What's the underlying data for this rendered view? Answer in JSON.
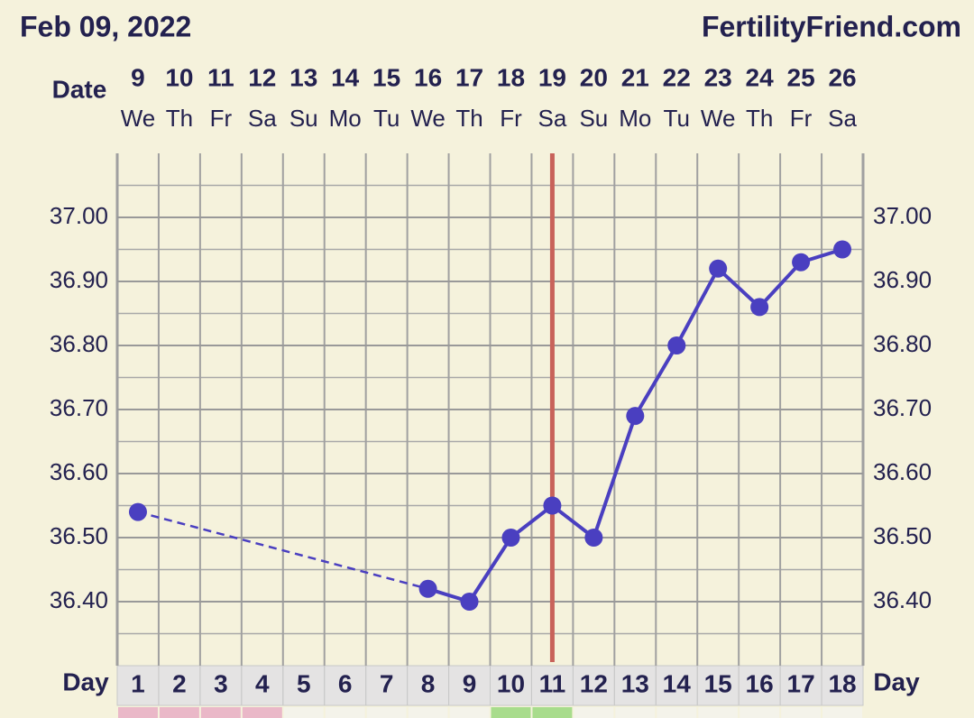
{
  "chart_data": {
    "type": "line",
    "title": "Feb 09, 2022",
    "site": "FertilityFriend.com",
    "date_label": "Date",
    "day_label": "Day",
    "dates": [
      9,
      10,
      11,
      12,
      13,
      14,
      15,
      16,
      17,
      18,
      19,
      20,
      21,
      22,
      23,
      24,
      25,
      26
    ],
    "weekdays": [
      "We",
      "Th",
      "Fr",
      "Sa",
      "Su",
      "Mo",
      "Tu",
      "We",
      "Th",
      "Fr",
      "Sa",
      "Su",
      "Mo",
      "Tu",
      "We",
      "Th",
      "Fr",
      "Sa"
    ],
    "days": [
      1,
      2,
      3,
      4,
      5,
      6,
      7,
      8,
      9,
      10,
      11,
      12,
      13,
      14,
      15,
      16,
      17,
      18
    ],
    "values": [
      36.54,
      null,
      null,
      null,
      null,
      null,
      null,
      36.42,
      36.4,
      36.5,
      36.55,
      36.5,
      36.69,
      36.8,
      36.92,
      36.86,
      36.93,
      36.95
    ],
    "color": "#4a3fc0",
    "ovulation_day": 11,
    "ovulation_color": "#c8625a",
    "ylim": [
      36.3,
      37.1
    ],
    "yticks": [
      {
        "value": 36.4,
        "label": "36.40"
      },
      {
        "value": 36.5,
        "label": "36.50"
      },
      {
        "value": 36.6,
        "label": "36.60"
      },
      {
        "value": 36.7,
        "label": "36.70"
      },
      {
        "value": 36.8,
        "label": "36.80"
      },
      {
        "value": 36.9,
        "label": "36.90"
      },
      {
        "value": 37.0,
        "label": "37.00"
      }
    ],
    "grid": true
  }
}
